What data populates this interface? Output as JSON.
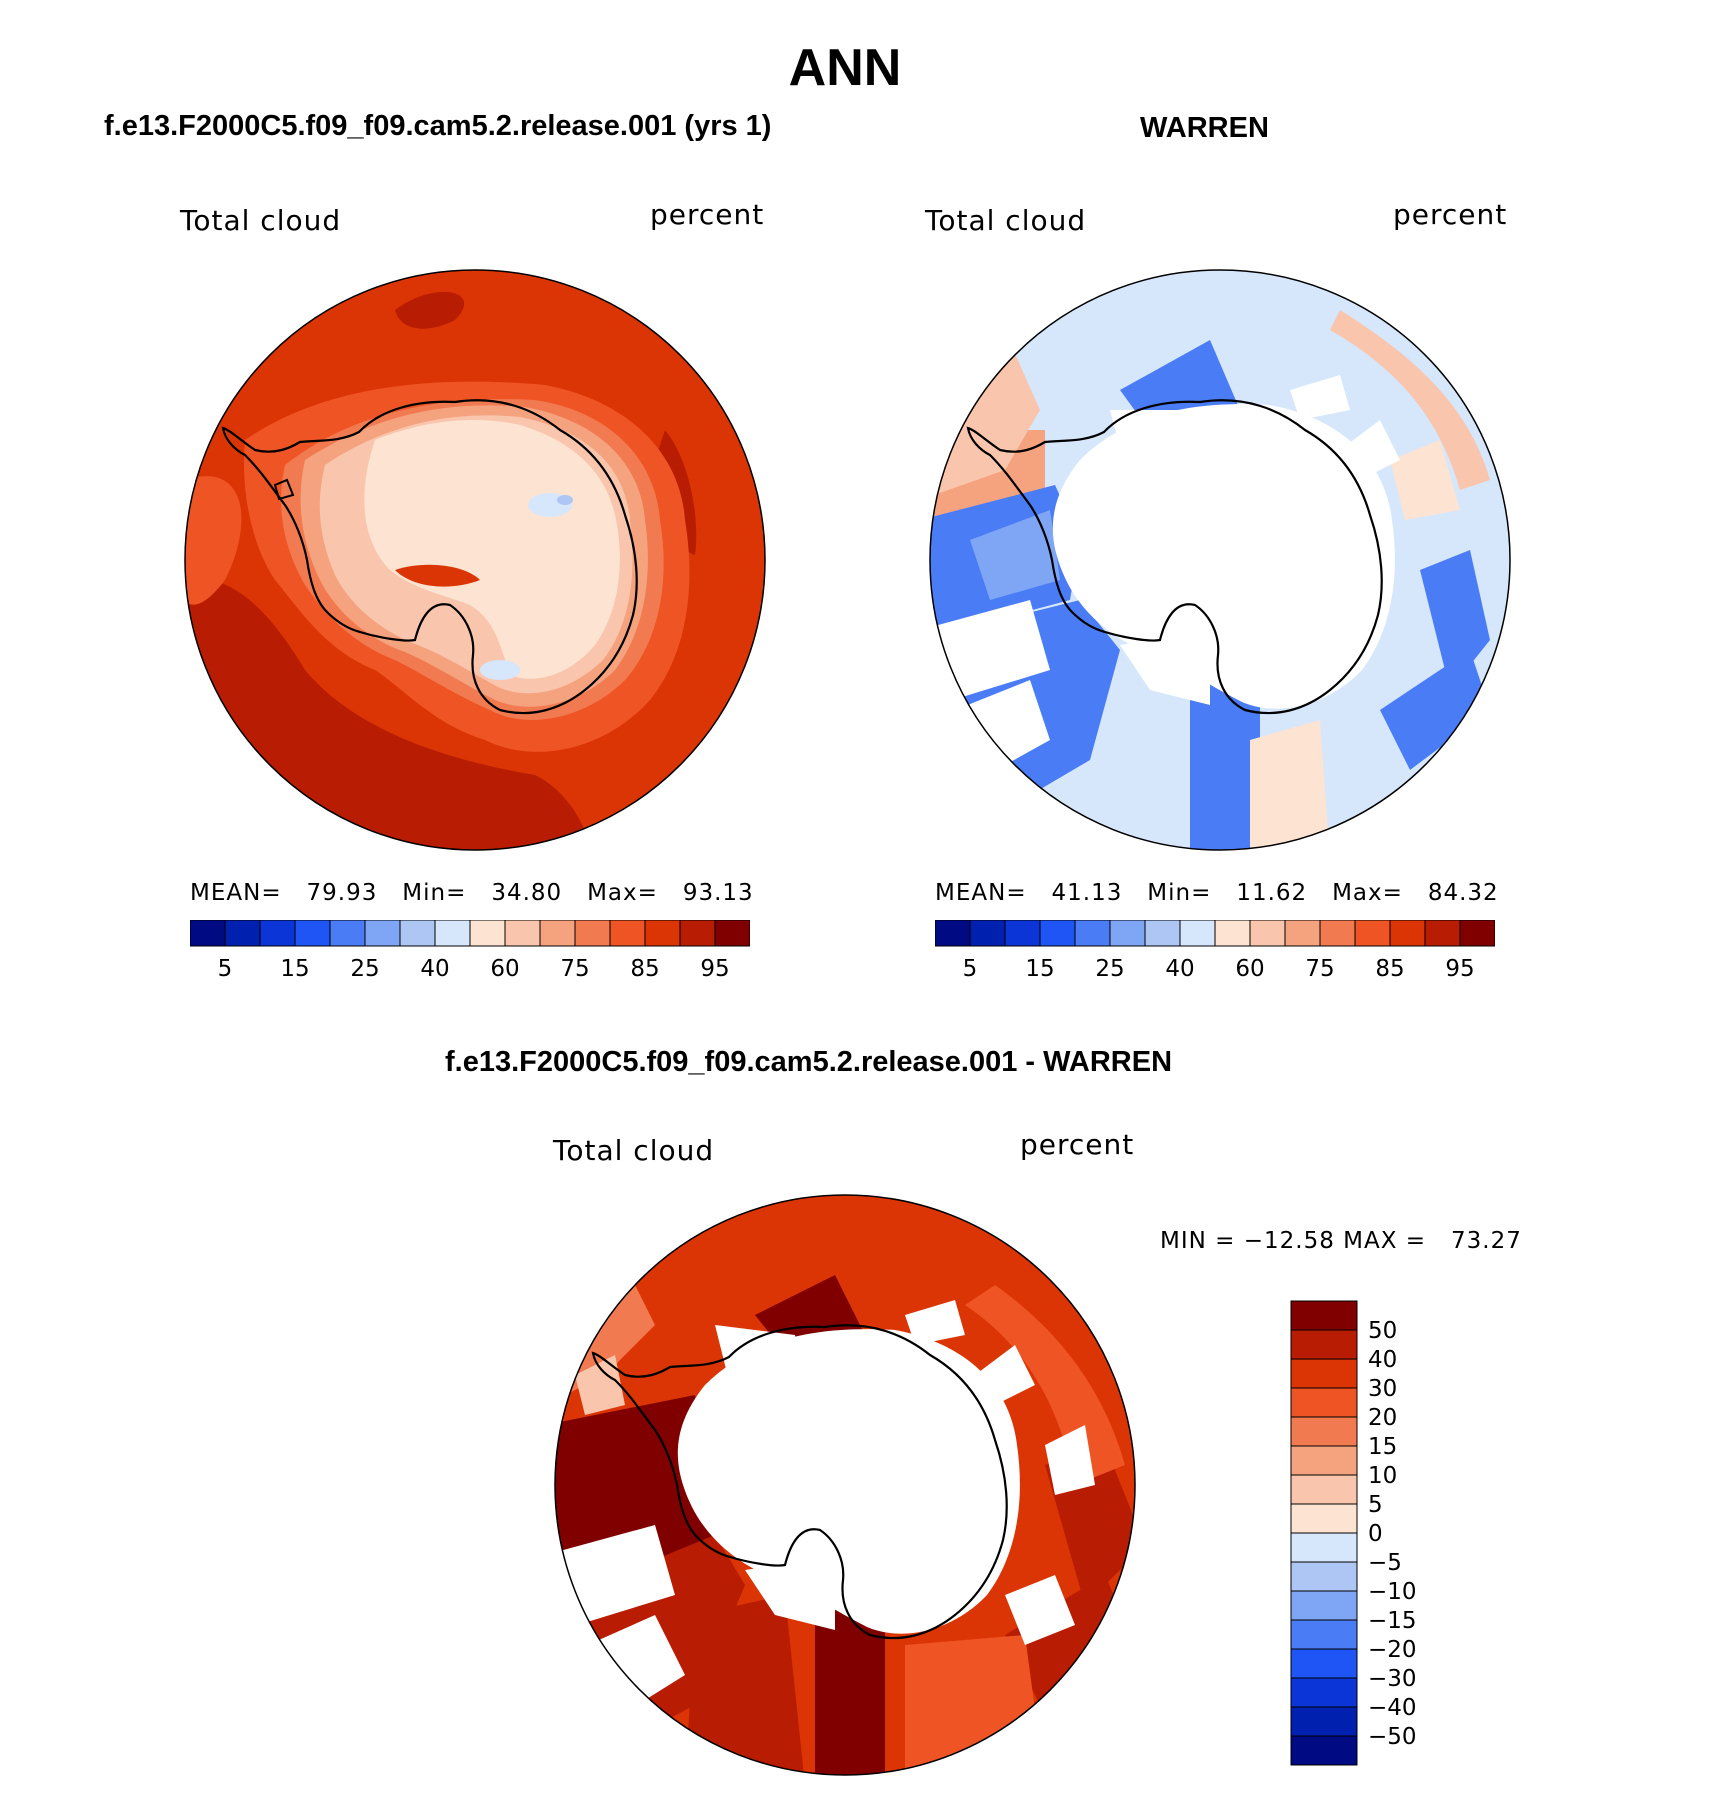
{
  "figure": {
    "title": "ANN",
    "panels": [
      {
        "subtitle": "f.e13.F2000C5.f09_f09.cam5.2.release.001 (yrs 1)",
        "left_label": "Total cloud",
        "right_label": "percent",
        "stats": "MEAN=   79.93   Min=   34.80   Max=   93.13"
      },
      {
        "subtitle": "WARREN",
        "left_label": "Total cloud",
        "right_label": "percent",
        "stats": "MEAN=   41.13   Min=   11.62   Max=   84.32"
      }
    ],
    "diff_panel": {
      "subtitle": "f.e13.F2000C5.f09_f09.cam5.2.release.001 - WARREN",
      "left_label": "Total cloud",
      "right_label": "percent",
      "stats": "MIN = −12.58 MAX =   73.27"
    }
  },
  "chart_data": [
    {
      "type": "heatmap",
      "title": "f.e13.F2000C5.f09_f09.cam5.2.release.001 (yrs 1)",
      "variable": "Total cloud",
      "units": "percent",
      "projection": "south polar stereographic",
      "mean": 79.93,
      "min": 34.8,
      "max": 93.13,
      "colorbar": {
        "tick_labels": [
          "5",
          "15",
          "25",
          "40",
          "60",
          "75",
          "85",
          "95"
        ],
        "colors": [
          "#000a82",
          "#0020b0",
          "#0b35d6",
          "#1f55f5",
          "#4a7df5",
          "#7fa6f4",
          "#adc6f4",
          "#d6e6fb",
          "#fde4d2",
          "#f9c6ad",
          "#f5a37f",
          "#f27a50",
          "#ee5424",
          "#dc3505",
          "#b81c02",
          "#800000"
        ]
      }
    },
    {
      "type": "heatmap",
      "title": "WARREN",
      "variable": "Total cloud",
      "units": "percent",
      "projection": "south polar stereographic",
      "mean": 41.13,
      "min": 11.62,
      "max": 84.32,
      "colorbar": {
        "tick_labels": [
          "5",
          "15",
          "25",
          "40",
          "60",
          "75",
          "85",
          "95"
        ],
        "colors": [
          "#000a82",
          "#0020b0",
          "#0b35d6",
          "#1f55f5",
          "#4a7df5",
          "#7fa6f4",
          "#adc6f4",
          "#d6e6fb",
          "#fde4d2",
          "#f9c6ad",
          "#f5a37f",
          "#f27a50",
          "#ee5424",
          "#dc3505",
          "#b81c02",
          "#800000"
        ]
      }
    },
    {
      "type": "heatmap",
      "title": "f.e13.F2000C5.f09_f09.cam5.2.release.001 - WARREN",
      "variable": "Total cloud",
      "units": "percent",
      "projection": "south polar stereographic",
      "min": -12.58,
      "max": 73.27,
      "colorbar": {
        "tick_labels": [
          "50",
          "40",
          "30",
          "20",
          "15",
          "10",
          "5",
          "0",
          "−5",
          "−10",
          "−15",
          "−20",
          "−30",
          "−40",
          "−50"
        ],
        "colors": [
          "#800000",
          "#b81c02",
          "#dc3505",
          "#ee5424",
          "#f27a50",
          "#f5a37f",
          "#f9c6ad",
          "#fde4d2",
          "#d6e6fb",
          "#adc6f4",
          "#7fa6f4",
          "#4a7df5",
          "#1f55f5",
          "#0b35d6",
          "#0020b0",
          "#000a82"
        ]
      }
    }
  ]
}
